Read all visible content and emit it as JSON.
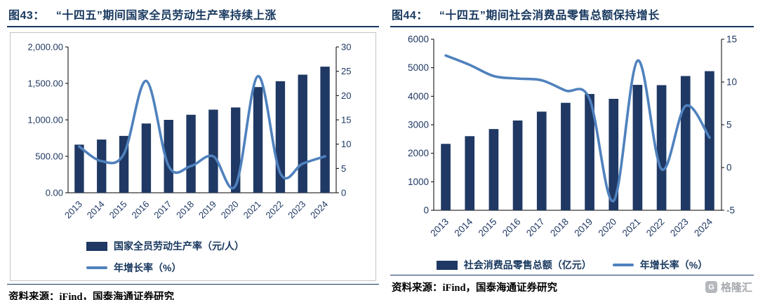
{
  "page": {
    "watermark": {
      "icon": "G",
      "text": "格隆汇"
    }
  },
  "left_panel": {
    "fig_label": "图43：",
    "title": "“十四五”期间国家全员劳动生产率持续上涨",
    "source": "资料来源：iFind，国泰海通证券研究"
  },
  "right_panel": {
    "fig_label": "图44：",
    "title": "“十四五”期间社会消费品零售总额保持增长",
    "source": "资料来源：iFind，国泰海通证券研究"
  },
  "chart_data": [
    {
      "type": "bar",
      "title": "“十四五”期间国家全员劳动生产率持续上涨",
      "categories": [
        "2013",
        "2014",
        "2015",
        "2016",
        "2017",
        "2018",
        "2019",
        "2020",
        "2021",
        "2022",
        "2023",
        "2024"
      ],
      "series": [
        {
          "name": "国家全员劳动生产率（元/人）",
          "type": "bar",
          "axis": "left",
          "values": [
            660,
            730,
            780,
            950,
            1000,
            1070,
            1140,
            1170,
            1450,
            1530,
            1620,
            1730
          ]
        },
        {
          "name": "年增长率（%）",
          "type": "line",
          "axis": "right",
          "values": [
            9.5,
            6.5,
            8,
            23,
            5.5,
            5.5,
            7.5,
            1.5,
            24,
            4,
            6,
            7.5
          ]
        }
      ],
      "left_axis": {
        "min": 0,
        "max": 2000,
        "ticks": [
          "0.00",
          "500.00",
          "1,000.00",
          "1,500.00",
          "2,000.00"
        ]
      },
      "right_axis": {
        "min": 0,
        "max": 30,
        "ticks": [
          "0",
          "5",
          "10",
          "15",
          "20",
          "25",
          "30"
        ]
      },
      "colors": {
        "bar": "#1F3864",
        "line": "#4F81BD",
        "axis_text": "#1F3864"
      },
      "grid": false,
      "legend_position": "bottom"
    },
    {
      "type": "bar",
      "title": "“十四五”期间社会消费品零售总额保持增长",
      "categories": [
        "2013",
        "2014",
        "2015",
        "2016",
        "2017",
        "2018",
        "2019",
        "2020",
        "2021",
        "2022",
        "2023",
        "2024"
      ],
      "series": [
        {
          "name": "社会消费品零售总额（亿元）",
          "type": "bar",
          "axis": "left",
          "values": [
            2330,
            2600,
            2850,
            3150,
            3460,
            3770,
            4080,
            3910,
            4400,
            4390,
            4710,
            4880
          ]
        },
        {
          "name": "年增长率（%）",
          "type": "line",
          "axis": "right",
          "values": [
            13.1,
            12.0,
            10.7,
            10.4,
            10.2,
            9.0,
            8.0,
            -3.9,
            12.5,
            -0.2,
            7.2,
            3.5
          ]
        }
      ],
      "left_axis": {
        "min": 0,
        "max": 6000,
        "ticks": [
          "0",
          "1000",
          "2000",
          "3000",
          "4000",
          "5000",
          "6000"
        ]
      },
      "right_axis": {
        "min": -5,
        "max": 15,
        "ticks": [
          "-5",
          "0",
          "5",
          "10",
          "15"
        ]
      },
      "colors": {
        "bar": "#1F3864",
        "line": "#4F81BD",
        "axis_text": "#1F3864"
      },
      "grid": false,
      "legend_position": "bottom"
    }
  ]
}
